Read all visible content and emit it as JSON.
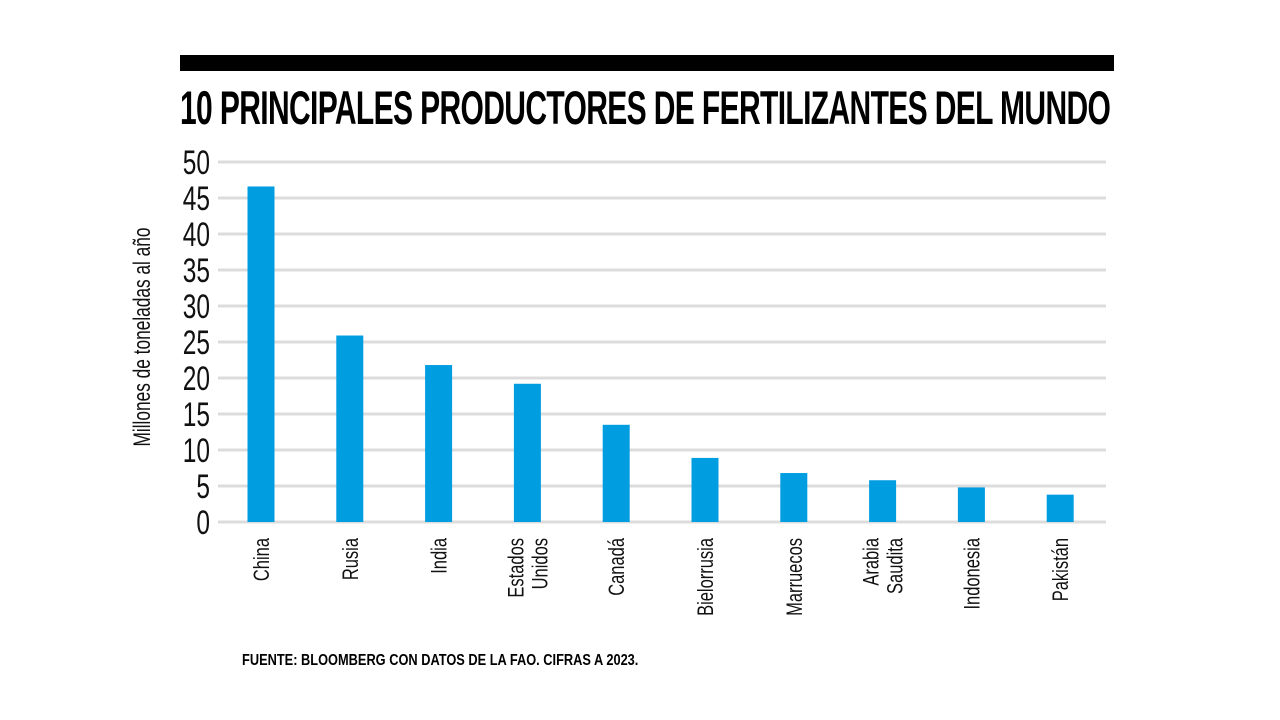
{
  "chart_data": {
    "type": "bar",
    "title": "10 PRINCIPALES PRODUCTORES DE FERTILIZANTES DEL MUNDO",
    "xlabel": "",
    "ylabel": "Millones de toneladas al año",
    "categories": [
      [
        "China"
      ],
      [
        "Rusia"
      ],
      [
        "India"
      ],
      [
        "Estados",
        "Unidos"
      ],
      [
        "Canadá"
      ],
      [
        "Bielorrusia"
      ],
      [
        "Marruecos"
      ],
      [
        "Arabia",
        "Saudita"
      ],
      [
        "Indonesia"
      ],
      [
        "Pakistán"
      ]
    ],
    "values": [
      46.6,
      25.9,
      21.8,
      19.2,
      13.5,
      8.9,
      6.8,
      5.8,
      4.8,
      3.8
    ],
    "ylim": [
      0,
      50
    ],
    "yticks": [
      0,
      5,
      10,
      15,
      20,
      25,
      30,
      35,
      40,
      45,
      50
    ],
    "grid": true,
    "bar_color": "#009de0",
    "grid_color": "#dcdcdc",
    "source": "FUENTE: BLOOMBERG CON DATOS DE LA FAO. CIFRAS A 2023."
  }
}
